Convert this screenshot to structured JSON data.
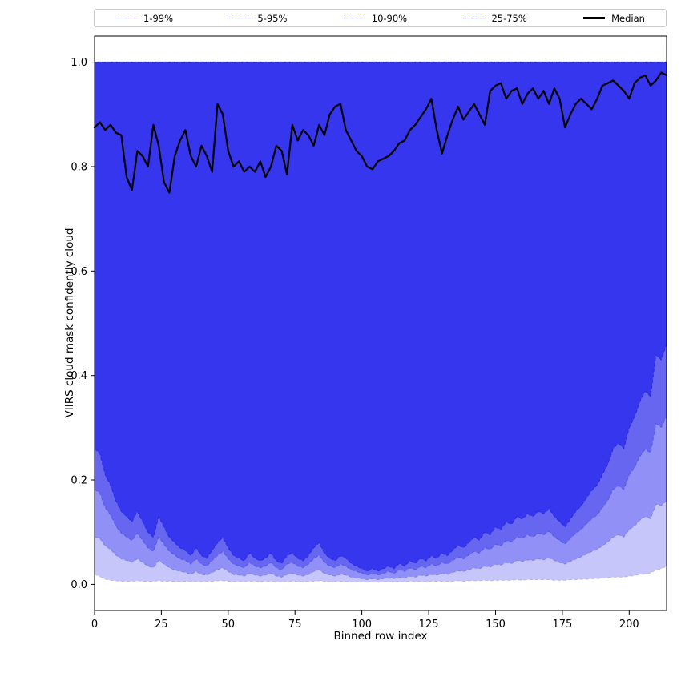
{
  "chart_data": {
    "type": "area",
    "title": "",
    "xlabel": "Binned row index",
    "ylabel": "VIIRS cloud mask confidently cloud",
    "xlim": [
      0,
      214
    ],
    "ylim": [
      0,
      1
    ],
    "x_ticks": [
      0,
      25,
      50,
      75,
      100,
      125,
      150,
      175,
      200
    ],
    "y_ticks": [
      0.0,
      0.2,
      0.4,
      0.6,
      0.8,
      1.0
    ],
    "grid": false,
    "legend_position": "top",
    "x": [
      0,
      2,
      4,
      6,
      8,
      10,
      12,
      14,
      16,
      18,
      20,
      22,
      24,
      26,
      28,
      30,
      32,
      34,
      36,
      38,
      40,
      42,
      44,
      46,
      48,
      50,
      52,
      54,
      56,
      58,
      60,
      62,
      64,
      66,
      68,
      70,
      72,
      74,
      76,
      78,
      80,
      82,
      84,
      86,
      88,
      90,
      92,
      94,
      96,
      98,
      100,
      102,
      104,
      106,
      108,
      110,
      112,
      114,
      116,
      118,
      120,
      122,
      124,
      126,
      128,
      130,
      132,
      134,
      136,
      138,
      140,
      142,
      144,
      146,
      148,
      150,
      152,
      154,
      156,
      158,
      160,
      162,
      164,
      166,
      168,
      170,
      172,
      174,
      176,
      178,
      180,
      182,
      184,
      186,
      188,
      190,
      192,
      194,
      196,
      198,
      200,
      202,
      204,
      206,
      208,
      210,
      212,
      214
    ],
    "bands": [
      {
        "label": "1-99%",
        "color": "#c6c6fa",
        "edge": "#b5b5f8",
        "upper": 1.0,
        "lower": [
          0.02,
          0.015,
          0.01,
          0.008,
          0.007,
          0.006,
          0.006,
          0.006,
          0.007,
          0.006,
          0.006,
          0.006,
          0.007,
          0.006,
          0.006,
          0.006,
          0.005,
          0.006,
          0.005,
          0.006,
          0.005,
          0.006,
          0.006,
          0.007,
          0.007,
          0.006,
          0.005,
          0.006,
          0.005,
          0.006,
          0.006,
          0.005,
          0.006,
          0.006,
          0.005,
          0.005,
          0.006,
          0.006,
          0.005,
          0.005,
          0.006,
          0.006,
          0.007,
          0.006,
          0.005,
          0.005,
          0.006,
          0.005,
          0.005,
          0.005,
          0.005,
          0.004,
          0.005,
          0.004,
          0.005,
          0.005,
          0.005,
          0.005,
          0.005,
          0.006,
          0.005,
          0.006,
          0.005,
          0.006,
          0.006,
          0.006,
          0.006,
          0.006,
          0.007,
          0.006,
          0.007,
          0.007,
          0.007,
          0.008,
          0.007,
          0.008,
          0.008,
          0.008,
          0.008,
          0.009,
          0.008,
          0.009,
          0.009,
          0.009,
          0.009,
          0.009,
          0.008,
          0.008,
          0.008,
          0.009,
          0.009,
          0.01,
          0.01,
          0.011,
          0.011,
          0.012,
          0.013,
          0.014,
          0.014,
          0.014,
          0.016,
          0.017,
          0.019,
          0.02,
          0.022,
          0.028,
          0.03,
          0.035
        ]
      },
      {
        "label": "5-95%",
        "color": "#9090f6",
        "edge": "#7f7ff4",
        "upper": 1.0,
        "lower": [
          0.091,
          0.088,
          0.074,
          0.067,
          0.056,
          0.049,
          0.046,
          0.042,
          0.049,
          0.042,
          0.035,
          0.032,
          0.046,
          0.039,
          0.032,
          0.028,
          0.025,
          0.023,
          0.019,
          0.025,
          0.019,
          0.018,
          0.023,
          0.028,
          0.032,
          0.025,
          0.019,
          0.018,
          0.016,
          0.021,
          0.018,
          0.016,
          0.018,
          0.021,
          0.016,
          0.014,
          0.019,
          0.021,
          0.018,
          0.016,
          0.019,
          0.025,
          0.028,
          0.021,
          0.018,
          0.016,
          0.019,
          0.018,
          0.014,
          0.012,
          0.011,
          0.009,
          0.011,
          0.009,
          0.011,
          0.012,
          0.011,
          0.014,
          0.012,
          0.016,
          0.014,
          0.018,
          0.016,
          0.019,
          0.018,
          0.021,
          0.019,
          0.023,
          0.026,
          0.025,
          0.028,
          0.032,
          0.03,
          0.035,
          0.033,
          0.039,
          0.037,
          0.042,
          0.04,
          0.046,
          0.044,
          0.047,
          0.046,
          0.049,
          0.047,
          0.051,
          0.046,
          0.042,
          0.039,
          0.044,
          0.049,
          0.053,
          0.058,
          0.063,
          0.067,
          0.074,
          0.081,
          0.091,
          0.095,
          0.091,
          0.105,
          0.112,
          0.123,
          0.13,
          0.126,
          0.154,
          0.151,
          0.161
        ]
      },
      {
        "label": "10-90%",
        "color": "#6666f1",
        "edge": "#5555ee",
        "upper": 1.0,
        "lower": [
          0.182,
          0.175,
          0.147,
          0.133,
          0.112,
          0.098,
          0.091,
          0.084,
          0.098,
          0.084,
          0.07,
          0.063,
          0.091,
          0.077,
          0.063,
          0.056,
          0.049,
          0.046,
          0.039,
          0.049,
          0.039,
          0.035,
          0.046,
          0.056,
          0.063,
          0.049,
          0.039,
          0.035,
          0.032,
          0.042,
          0.035,
          0.032,
          0.035,
          0.042,
          0.032,
          0.028,
          0.039,
          0.042,
          0.035,
          0.032,
          0.039,
          0.049,
          0.056,
          0.042,
          0.035,
          0.032,
          0.039,
          0.035,
          0.028,
          0.025,
          0.021,
          0.018,
          0.021,
          0.018,
          0.021,
          0.025,
          0.021,
          0.028,
          0.025,
          0.032,
          0.028,
          0.035,
          0.032,
          0.039,
          0.035,
          0.042,
          0.039,
          0.046,
          0.053,
          0.049,
          0.056,
          0.063,
          0.06,
          0.07,
          0.067,
          0.077,
          0.074,
          0.084,
          0.081,
          0.091,
          0.088,
          0.095,
          0.091,
          0.098,
          0.095,
          0.102,
          0.091,
          0.084,
          0.077,
          0.088,
          0.098,
          0.105,
          0.116,
          0.126,
          0.133,
          0.147,
          0.161,
          0.182,
          0.189,
          0.182,
          0.21,
          0.224,
          0.245,
          0.259,
          0.252,
          0.308,
          0.301,
          0.322
        ]
      },
      {
        "label": "25-75%",
        "color": "#3636ee",
        "edge": "#2a2ae0",
        "upper": 1.0,
        "lower": [
          0.26,
          0.25,
          0.21,
          0.19,
          0.16,
          0.14,
          0.13,
          0.12,
          0.14,
          0.12,
          0.1,
          0.09,
          0.13,
          0.11,
          0.09,
          0.08,
          0.07,
          0.065,
          0.055,
          0.07,
          0.055,
          0.05,
          0.065,
          0.08,
          0.09,
          0.07,
          0.055,
          0.05,
          0.045,
          0.06,
          0.05,
          0.045,
          0.05,
          0.06,
          0.045,
          0.04,
          0.055,
          0.06,
          0.05,
          0.045,
          0.055,
          0.07,
          0.08,
          0.06,
          0.05,
          0.045,
          0.055,
          0.05,
          0.04,
          0.035,
          0.03,
          0.025,
          0.03,
          0.025,
          0.03,
          0.035,
          0.03,
          0.04,
          0.035,
          0.045,
          0.04,
          0.05,
          0.045,
          0.055,
          0.05,
          0.06,
          0.055,
          0.065,
          0.075,
          0.07,
          0.08,
          0.09,
          0.085,
          0.1,
          0.095,
          0.11,
          0.105,
          0.12,
          0.115,
          0.13,
          0.125,
          0.135,
          0.13,
          0.14,
          0.135,
          0.145,
          0.13,
          0.12,
          0.11,
          0.125,
          0.14,
          0.15,
          0.165,
          0.18,
          0.19,
          0.21,
          0.23,
          0.26,
          0.27,
          0.26,
          0.3,
          0.32,
          0.35,
          0.37,
          0.36,
          0.44,
          0.43,
          0.46
        ]
      }
    ],
    "median": {
      "label": "Median",
      "color": "#000000",
      "values": [
        0.875,
        0.885,
        0.87,
        0.88,
        0.865,
        0.86,
        0.78,
        0.755,
        0.83,
        0.82,
        0.8,
        0.88,
        0.84,
        0.77,
        0.75,
        0.82,
        0.85,
        0.87,
        0.82,
        0.8,
        0.84,
        0.82,
        0.79,
        0.92,
        0.9,
        0.83,
        0.8,
        0.81,
        0.79,
        0.8,
        0.79,
        0.81,
        0.78,
        0.8,
        0.84,
        0.83,
        0.785,
        0.88,
        0.85,
        0.87,
        0.86,
        0.84,
        0.88,
        0.86,
        0.9,
        0.915,
        0.92,
        0.87,
        0.85,
        0.83,
        0.82,
        0.8,
        0.795,
        0.81,
        0.815,
        0.82,
        0.83,
        0.845,
        0.85,
        0.87,
        0.88,
        0.895,
        0.91,
        0.93,
        0.87,
        0.825,
        0.86,
        0.89,
        0.915,
        0.89,
        0.905,
        0.92,
        0.9,
        0.88,
        0.945,
        0.955,
        0.96,
        0.93,
        0.945,
        0.95,
        0.92,
        0.94,
        0.95,
        0.93,
        0.945,
        0.92,
        0.95,
        0.93,
        0.875,
        0.9,
        0.92,
        0.93,
        0.92,
        0.91,
        0.93,
        0.955,
        0.96,
        0.965,
        0.955,
        0.945,
        0.93,
        0.96,
        0.97,
        0.975,
        0.955,
        0.965,
        0.98,
        0.975
      ]
    },
    "top_line": {
      "y": 1.0,
      "style": "dashed",
      "color": "#0a0a50"
    }
  }
}
